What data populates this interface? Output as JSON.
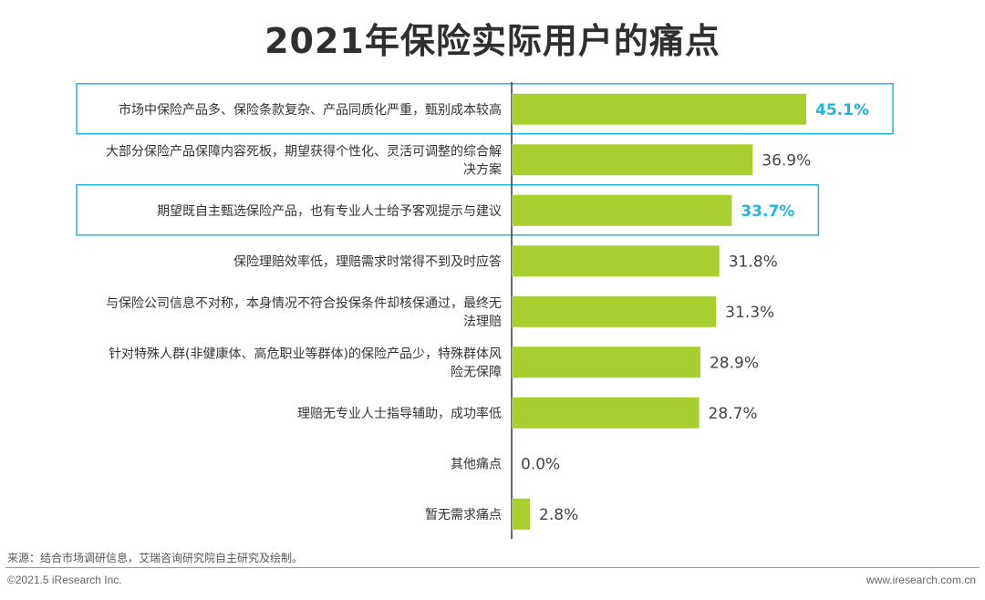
{
  "chart_data": {
    "type": "bar",
    "orientation": "horizontal",
    "title": "2021年保险实际用户的痛点",
    "unit": "%",
    "categories": [
      [
        "市场中保险产品多、保险条款复杂、产品同质化严重，甄别成本较高"
      ],
      [
        "大部分保险产品保障内容死板，期望获得个性化、灵活可调整的综合解",
        "决方案"
      ],
      [
        "期望既自主甄选保险产品，也有专业人士给予客观提示与建议"
      ],
      [
        "保险理赔效率低，理赔需求时常得不到及时应答"
      ],
      [
        "与保险公司信息不对称，本身情况不符合投保条件却核保通过，最终无",
        "法理赔"
      ],
      [
        "针对特殊人群(非健康体、高危职业等群体)的保险产品少，特殊群体风",
        "险无保障"
      ],
      [
        "理赔无专业人士指导辅助，成功率低"
      ],
      [
        "其他痛点"
      ],
      [
        "暂无需求痛点"
      ]
    ],
    "values": [
      45.1,
      36.9,
      33.7,
      31.8,
      31.3,
      28.9,
      28.7,
      0.0,
      2.8
    ],
    "value_labels": [
      "45.1%",
      "36.9%",
      "33.7%",
      "31.8%",
      "31.3%",
      "28.9%",
      "28.7%",
      "0.0%",
      "2.8%"
    ],
    "highlighted": [
      0,
      2
    ],
    "xlim": [
      0,
      45.1
    ],
    "bar_color": "#a8cf2f",
    "highlight_color": "#1fb6e0",
    "grid": false
  },
  "footer": {
    "source": "来源：结合市场调研信息，艾瑞咨询研究院自主研究及绘制。",
    "copyright": "©2021.5 iResearch Inc.",
    "site": "www.iresearch.com.cn"
  }
}
